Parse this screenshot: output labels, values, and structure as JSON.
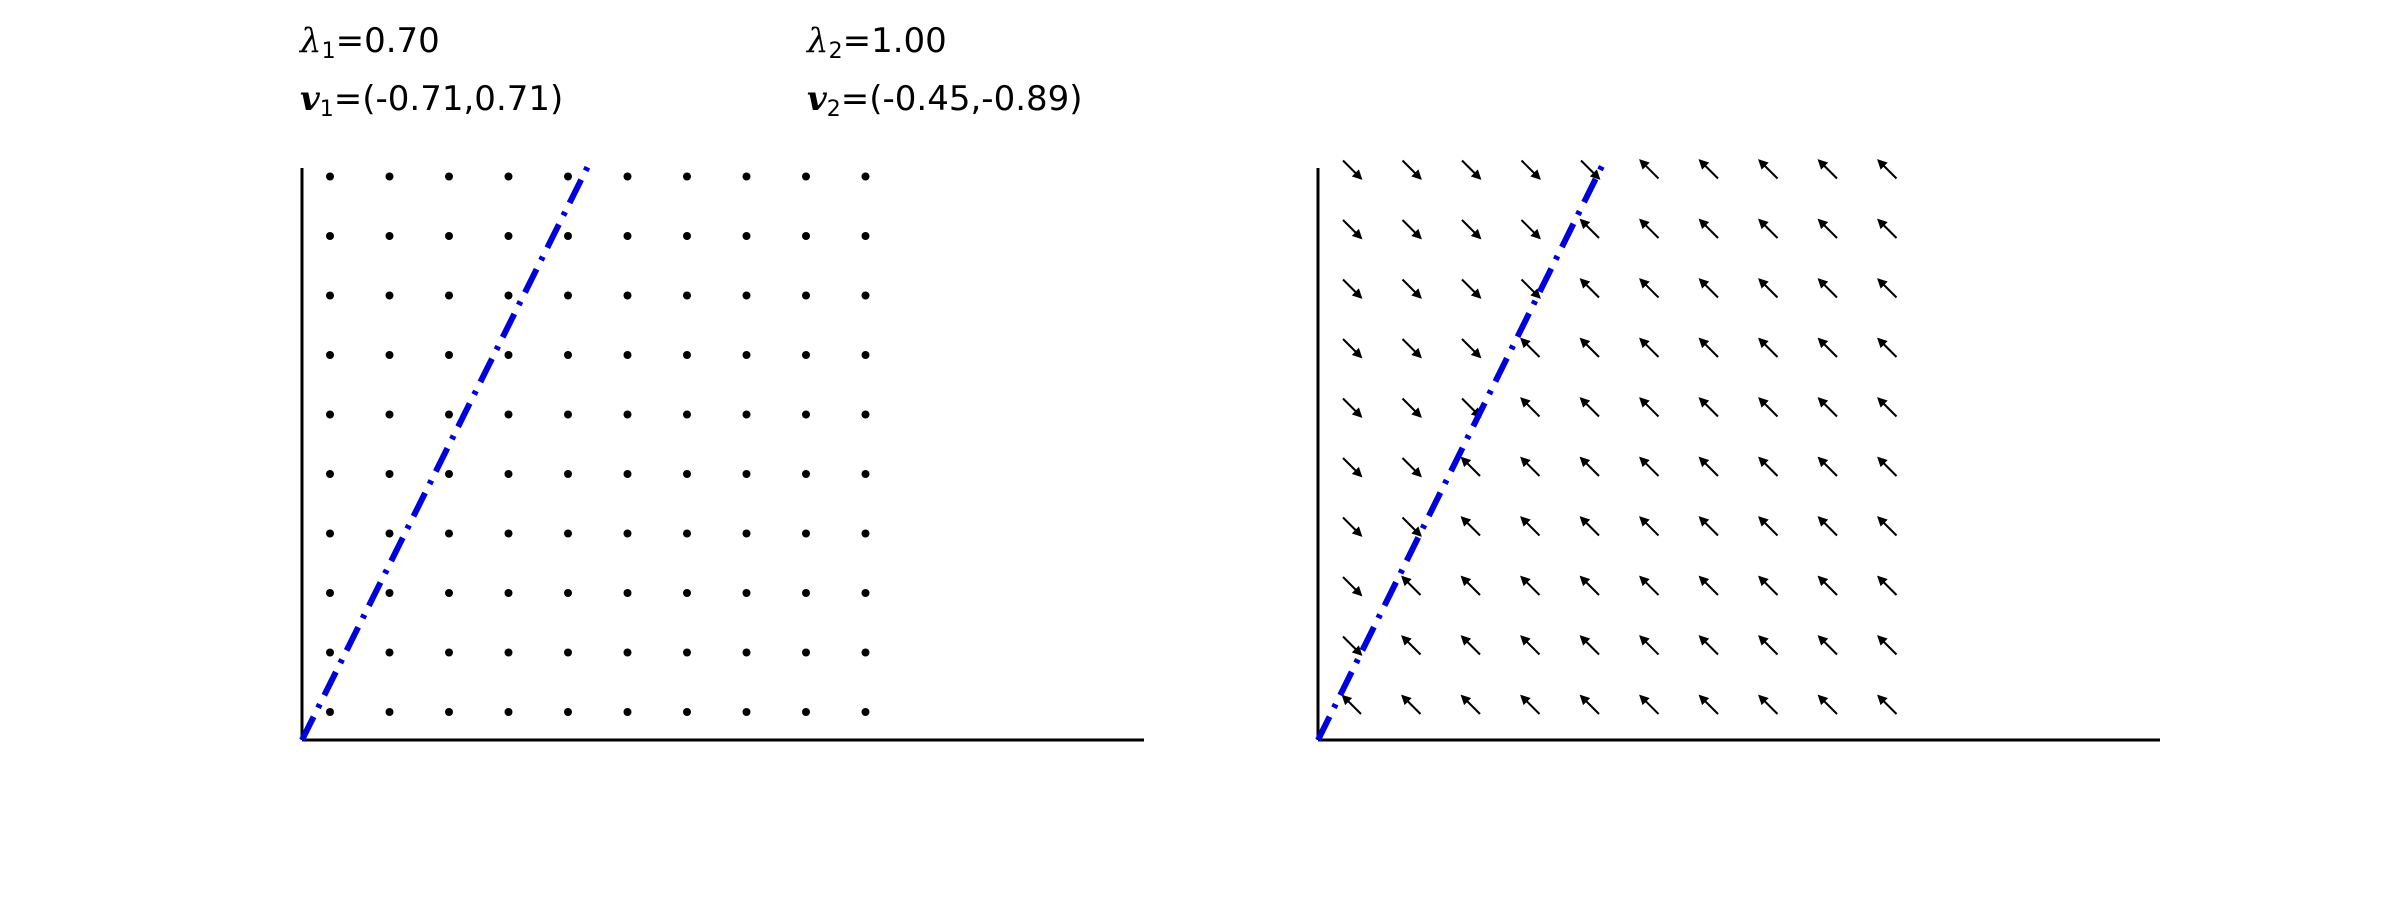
{
  "labels": {
    "eig1": {
      "lambda_sym": "λ",
      "lambda_sub": "1",
      "eq": "=",
      "lambda_val": "0.70",
      "v_sym": "v",
      "v_sub": "1",
      "v_val": "(-0.71,0.71)"
    },
    "eig2": {
      "lambda_sym": "λ",
      "lambda_sub": "2",
      "eq": "=",
      "lambda_val": "1.00",
      "v_sym": "v",
      "v_sub": "2",
      "v_val": "(-0.45,-0.89)"
    }
  },
  "colors": {
    "axis": "#000000",
    "dashed_line": "#0000dd",
    "marker": "#000000"
  },
  "panels": [
    {
      "name": "panel-left",
      "grid": {
        "cols": 10,
        "rows": 10
      },
      "markers": "dots",
      "dashed_line": {
        "style": "dash-dot"
      }
    },
    {
      "name": "panel-right",
      "grid": {
        "cols": 10,
        "rows": 10
      },
      "markers": "arrows",
      "dashed_line": {
        "style": "dash-dot"
      }
    }
  ]
}
